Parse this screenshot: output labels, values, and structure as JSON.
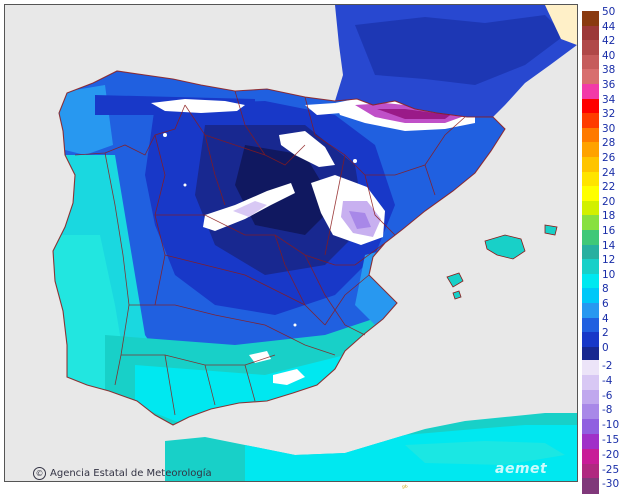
{
  "credit": {
    "text": "Agencia Estatal de Meteorología",
    "symbol": "©"
  },
  "logo": {
    "text": "aemet"
  },
  "bottom_mark": {
    "text": "ᵍᵇ"
  },
  "legend": {
    "upper_ticks": [
      "50",
      "44",
      "42",
      "40",
      "38",
      "36",
      "34",
      "32",
      "30",
      "28",
      "26",
      "24",
      "22",
      "20",
      "18",
      "16",
      "14",
      "12",
      "10",
      "8",
      "6",
      "4",
      "2",
      "0"
    ],
    "upper_colors": [
      "#8a3a10",
      "#9c3838",
      "#b04848",
      "#c65c5c",
      "#d86e6e",
      "#f23aa8",
      "#ff0000",
      "#ff3c00",
      "#ff7a00",
      "#ffa200",
      "#ffc400",
      "#ffe400",
      "#ffff00",
      "#d2f000",
      "#88e040",
      "#40c878",
      "#28b0a0",
      "#18d0c8",
      "#00e8f0",
      "#00c8f8",
      "#2898f0",
      "#2060e0",
      "#1838c8",
      "#182890",
      "#101860"
    ],
    "lower_ticks": [
      "-2",
      "-4",
      "-6",
      "-8",
      "-10",
      "-15",
      "-20",
      "-25",
      "-30"
    ],
    "lower_colors": [
      "#ece4f8",
      "#d8c8f4",
      "#c0a8ee",
      "#a888e8",
      "#9060e0",
      "#a030c8",
      "#c81c98",
      "#b02880",
      "#80387a"
    ]
  },
  "map": {
    "sea_color": "#e8e8e8",
    "france_color": "#e8e8e8",
    "border_color": "#8c1a1a"
  }
}
